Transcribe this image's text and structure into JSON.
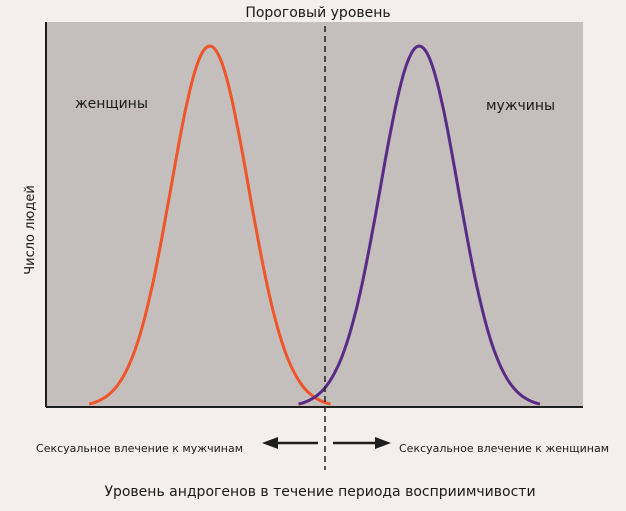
{
  "chart_data": {
    "type": "line",
    "title": "",
    "xlabel": "Уровень андрогенов в течение периода восприимчивости",
    "ylabel": "Число людей",
    "threshold_label": "Пороговый уровень",
    "arrow_left_label": "Сексуальное влечение к мужчинам",
    "arrow_right_label": "Сексуальное влечение к женщинам",
    "grid": false,
    "axis_ticks": false,
    "colors": {
      "plot_background": "#c4bfbd",
      "page_background": "#f2efec"
    },
    "series": [
      {
        "name": "женщины",
        "color": "#f0542a",
        "peak_x": 0.305,
        "spread": 0.0725
      },
      {
        "name": "мужчины",
        "color": "#5a2b86",
        "peak_x": 0.695,
        "spread": 0.0725
      }
    ]
  }
}
